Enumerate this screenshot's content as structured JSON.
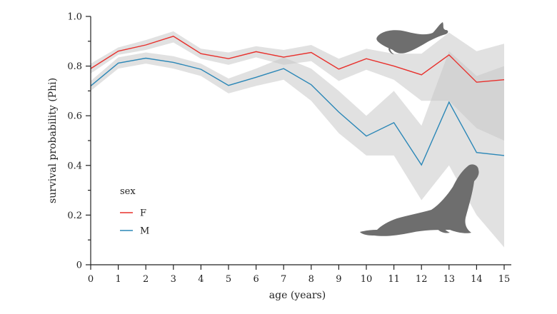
{
  "chart_data": {
    "type": "line",
    "xlabel": "age (years)",
    "ylabel": "survival probability (Phi)",
    "x": [
      0,
      1,
      2,
      3,
      4,
      5,
      6,
      7,
      8,
      9,
      10,
      11,
      12,
      13,
      14,
      15
    ],
    "xlim": [
      0,
      15
    ],
    "ylim": [
      0,
      1.0
    ],
    "x_ticks": [
      "0",
      "1",
      "2",
      "3",
      "4",
      "5",
      "6",
      "7",
      "8",
      "9",
      "10",
      "11",
      "12",
      "13",
      "14",
      "15"
    ],
    "y_ticks": [
      "0",
      "0.2",
      "0.4",
      "0.6",
      "0.8",
      "1.0"
    ],
    "grid": false,
    "legend": {
      "title": "sex",
      "placement": "bottom-left"
    },
    "series": [
      {
        "name": "F",
        "color": "#e8302c",
        "values": [
          0.79,
          0.86,
          0.885,
          0.92,
          0.85,
          0.83,
          0.858,
          0.836,
          0.855,
          0.788,
          0.83,
          0.8,
          0.765,
          0.845,
          0.735,
          0.745
        ],
        "ci_lower": [
          0.77,
          0.845,
          0.865,
          0.895,
          0.83,
          0.805,
          0.835,
          0.805,
          0.82,
          0.74,
          0.785,
          0.745,
          0.66,
          0.66,
          0.55,
          0.5
        ],
        "ci_upper": [
          0.81,
          0.875,
          0.905,
          0.94,
          0.87,
          0.855,
          0.88,
          0.865,
          0.885,
          0.83,
          0.87,
          0.85,
          0.85,
          0.935,
          0.86,
          0.89
        ]
      },
      {
        "name": "M",
        "color": "#2b87b7",
        "values": [
          0.72,
          0.812,
          0.832,
          0.815,
          0.787,
          0.722,
          0.755,
          0.79,
          0.725,
          0.615,
          0.518,
          0.572,
          0.402,
          0.655,
          0.452,
          0.44
        ],
        "ci_lower": [
          0.7,
          0.79,
          0.81,
          0.79,
          0.76,
          0.69,
          0.72,
          0.745,
          0.66,
          0.53,
          0.44,
          0.44,
          0.26,
          0.4,
          0.2,
          0.07
        ],
        "ci_upper": [
          0.74,
          0.835,
          0.855,
          0.84,
          0.81,
          0.75,
          0.79,
          0.835,
          0.79,
          0.7,
          0.6,
          0.7,
          0.56,
          0.86,
          0.76,
          0.8
        ]
      }
    ],
    "ci_color": "#c8c8c8",
    "silhouette_color": "#6e6e6e"
  }
}
